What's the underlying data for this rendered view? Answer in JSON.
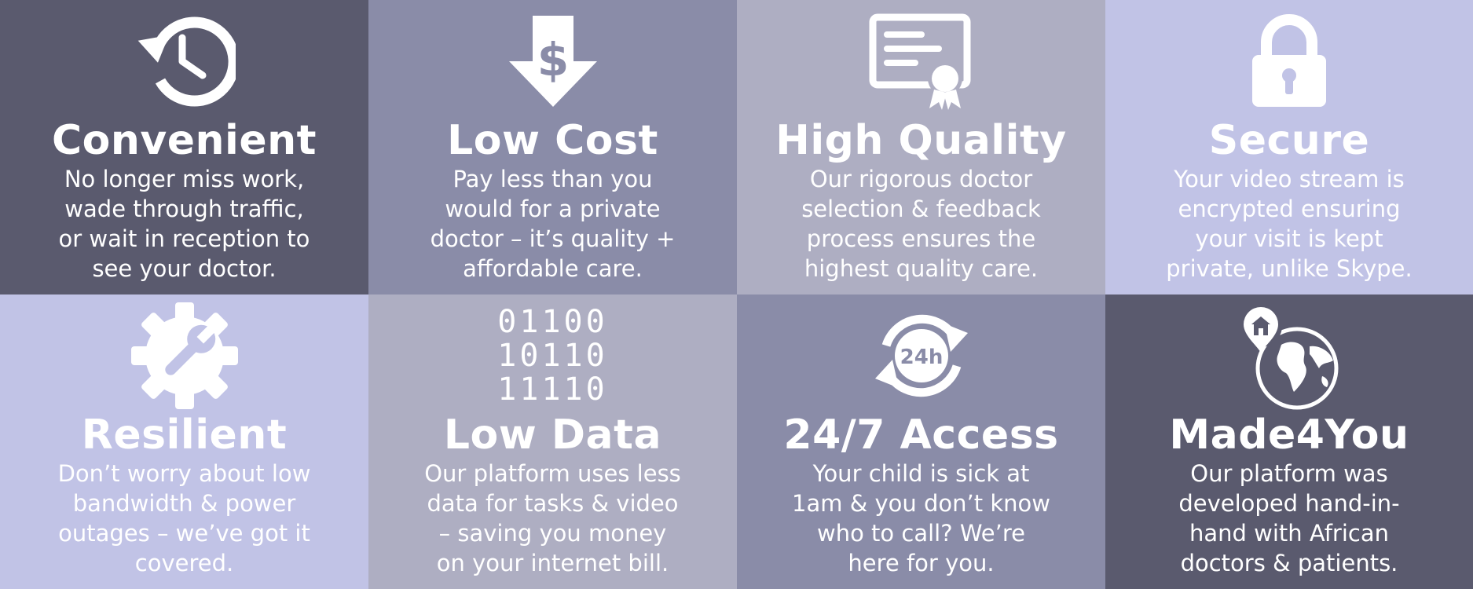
{
  "colors": {
    "dark": "#5a5a6e",
    "mid": "#8a8ca8",
    "light_gray": "#aeaec2",
    "lavender": "#c1c3e6",
    "text": "#ffffff"
  },
  "tiles": [
    {
      "icon": "history-clock-icon",
      "title": "Convenient",
      "lines": [
        "No longer miss work,",
        "wade through traffic,",
        "or wait in reception to",
        "see your doctor."
      ]
    },
    {
      "icon": "dollar-down-arrow-icon",
      "title": "Low Cost",
      "icon_text": "$",
      "lines": [
        "Pay less than you",
        "would for a private",
        "doctor – it’s quality +",
        "affordable care."
      ]
    },
    {
      "icon": "certificate-icon",
      "title": "High Quality",
      "lines": [
        "Our rigorous doctor",
        "selection & feedback",
        "process ensures the",
        "highest quality care."
      ]
    },
    {
      "icon": "padlock-icon",
      "title": "Secure",
      "lines": [
        "Your video stream is",
        "encrypted ensuring",
        "your visit is kept",
        "private, unlike Skype."
      ]
    },
    {
      "icon": "gear-wrench-icon",
      "title": "Resilient",
      "lines": [
        "Don’t worry about low",
        "bandwidth & power",
        "outages – we’ve got it",
        "covered."
      ]
    },
    {
      "icon": "binary-data-icon",
      "title": "Low Data",
      "binary": [
        "01100",
        "10110",
        "11110"
      ],
      "lines": [
        "Our platform uses less",
        "data for tasks & video",
        "– saving you money",
        "on your internet bill."
      ]
    },
    {
      "icon": "24h-cycle-icon",
      "title": "24/7 Access",
      "icon_text": "24h",
      "lines": [
        "Your child is sick at",
        "1am & you don’t know",
        "who to call? We’re",
        "here for you."
      ]
    },
    {
      "icon": "globe-home-pin-icon",
      "title": "Made4You",
      "lines": [
        "Our platform was",
        "developed hand-in-",
        "hand with African",
        "doctors & patients."
      ]
    }
  ]
}
